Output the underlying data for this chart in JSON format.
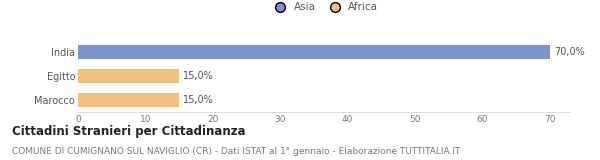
{
  "categories": [
    "India",
    "Egitto",
    "Marocco"
  ],
  "values": [
    70.0,
    15.0,
    15.0
  ],
  "colors": [
    "#7b93c9",
    "#f2c07e",
    "#f2c07e"
  ],
  "legend_labels": [
    "Asia",
    "Africa"
  ],
  "legend_colors": [
    "#7b93c9",
    "#f2c07e"
  ],
  "bar_labels": [
    "70,0%",
    "15,0%",
    "15,0%"
  ],
  "xlim": [
    0,
    70
  ],
  "xticks": [
    0,
    10,
    20,
    30,
    40,
    50,
    60,
    70
  ],
  "title": "Cittadini Stranieri per Cittadinanza",
  "subtitle": "COMUNE DI CUMIGNANO SUL NAVIGLIO (CR) - Dati ISTAT al 1° gennaio - Elaborazione TUTTITALIA.IT",
  "title_fontsize": 8.5,
  "subtitle_fontsize": 6.5,
  "label_fontsize": 7,
  "tick_fontsize": 6.5,
  "background_color": "#ffffff"
}
